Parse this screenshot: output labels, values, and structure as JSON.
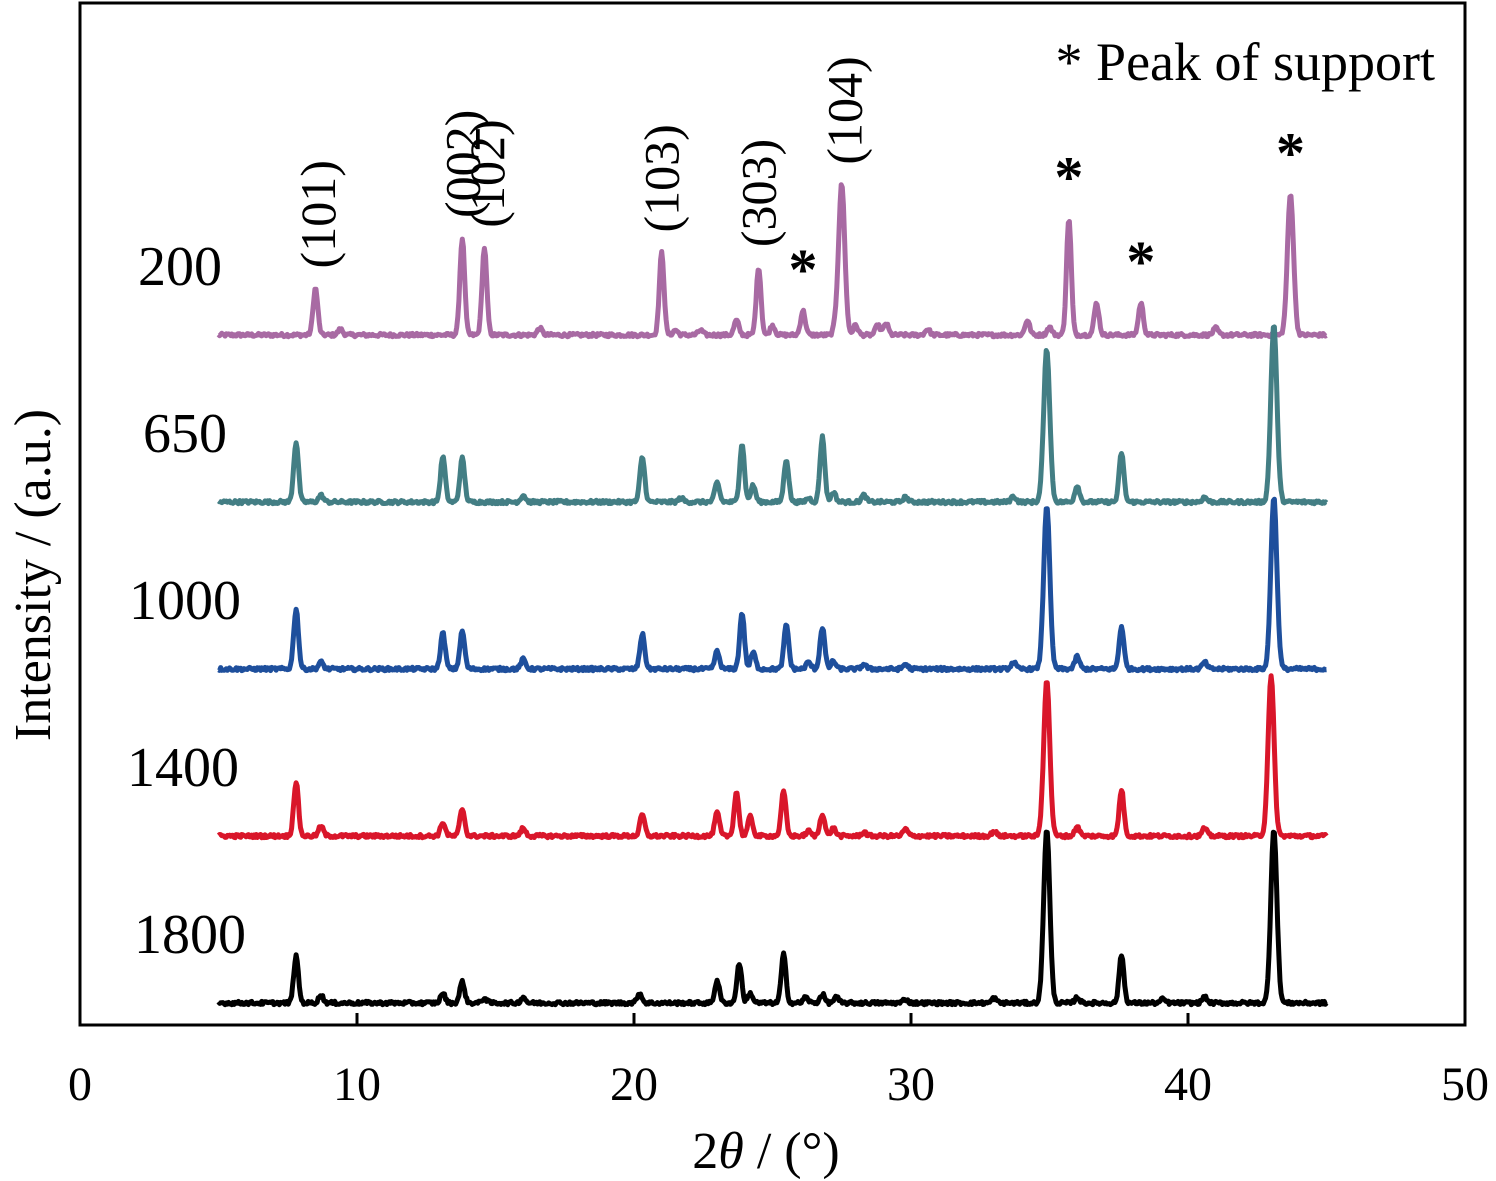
{
  "chart_data": {
    "type": "line",
    "xlabel_prefix": "2",
    "xlabel_symbol": "θ",
    "xlabel_suffix": " / (°)",
    "ylabel": "Intensity / (a.u.)",
    "xlim": [
      0,
      50
    ],
    "x_ticks": [
      0,
      10,
      20,
      30,
      40,
      50
    ],
    "y_ticks_shown": false,
    "grid": false,
    "legend": {
      "text": "* Peak of support",
      "placement": "top-right"
    },
    "x_range_data": [
      5,
      45
    ],
    "series": [
      {
        "name": "200",
        "color": "#a86aa3",
        "offset": 4,
        "peaks": [
          [
            8.5,
            0.48
          ],
          [
            9.4,
            0.06
          ],
          [
            13.8,
            1.0
          ],
          [
            14.6,
            0.9
          ],
          [
            16.6,
            0.07
          ],
          [
            21.0,
            0.85
          ],
          [
            21.5,
            0.05
          ],
          [
            22.4,
            0.05
          ],
          [
            23.7,
            0.15
          ],
          [
            24.5,
            0.7
          ],
          [
            25.0,
            0.1
          ],
          [
            26.1,
            0.25
          ],
          [
            27.3,
            0.1
          ],
          [
            27.5,
            1.55
          ],
          [
            28.0,
            0.1
          ],
          [
            28.8,
            0.1
          ],
          [
            29.1,
            0.12
          ],
          [
            30.6,
            0.06
          ],
          [
            34.2,
            0.15
          ],
          [
            35.0,
            0.08
          ],
          [
            35.7,
            1.2
          ],
          [
            36.7,
            0.33
          ],
          [
            38.3,
            0.33
          ],
          [
            41.0,
            0.07
          ],
          [
            43.7,
            1.45
          ]
        ]
      },
      {
        "name": "650",
        "color": "#437e84",
        "offset": 3,
        "peaks": [
          [
            7.8,
            0.62
          ],
          [
            8.7,
            0.07
          ],
          [
            13.1,
            0.47
          ],
          [
            13.8,
            0.45
          ],
          [
            16.0,
            0.07
          ],
          [
            20.3,
            0.46
          ],
          [
            21.7,
            0.04
          ],
          [
            23.0,
            0.2
          ],
          [
            23.9,
            0.6
          ],
          [
            24.3,
            0.17
          ],
          [
            25.5,
            0.44
          ],
          [
            26.3,
            0.04
          ],
          [
            26.8,
            0.67
          ],
          [
            27.2,
            0.1
          ],
          [
            28.3,
            0.07
          ],
          [
            29.8,
            0.05
          ],
          [
            33.7,
            0.06
          ],
          [
            34.9,
            1.58
          ],
          [
            36.0,
            0.17
          ],
          [
            37.6,
            0.51
          ],
          [
            40.6,
            0.05
          ],
          [
            43.1,
            1.83
          ]
        ]
      },
      {
        "name": "1000",
        "color": "#1e4f9c",
        "offset": 2,
        "peaks": [
          [
            7.8,
            0.62
          ],
          [
            8.7,
            0.07
          ],
          [
            13.1,
            0.37
          ],
          [
            13.8,
            0.39
          ],
          [
            16.0,
            0.1
          ],
          [
            20.3,
            0.36
          ],
          [
            23.0,
            0.18
          ],
          [
            23.9,
            0.58
          ],
          [
            24.3,
            0.17
          ],
          [
            25.5,
            0.46
          ],
          [
            26.3,
            0.07
          ],
          [
            26.8,
            0.43
          ],
          [
            27.2,
            0.08
          ],
          [
            28.3,
            0.05
          ],
          [
            29.8,
            0.05
          ],
          [
            33.7,
            0.07
          ],
          [
            34.9,
            1.69
          ],
          [
            36.0,
            0.13
          ],
          [
            37.6,
            0.44
          ],
          [
            40.6,
            0.07
          ],
          [
            43.1,
            1.77
          ]
        ]
      },
      {
        "name": "1400",
        "color": "#d9162a",
        "offset": 1,
        "peaks": [
          [
            7.8,
            0.56
          ],
          [
            8.7,
            0.1
          ],
          [
            13.1,
            0.14
          ],
          [
            13.8,
            0.28
          ],
          [
            16.0,
            0.08
          ],
          [
            20.3,
            0.22
          ],
          [
            23.0,
            0.24
          ],
          [
            23.7,
            0.45
          ],
          [
            24.2,
            0.2
          ],
          [
            25.4,
            0.46
          ],
          [
            26.3,
            0.05
          ],
          [
            26.8,
            0.23
          ],
          [
            27.2,
            0.08
          ],
          [
            28.3,
            0.04
          ],
          [
            29.8,
            0.07
          ],
          [
            33.0,
            0.05
          ],
          [
            34.9,
            1.61
          ],
          [
            36.0,
            0.1
          ],
          [
            37.6,
            0.48
          ],
          [
            40.6,
            0.08
          ],
          [
            43.0,
            1.64
          ]
        ]
      },
      {
        "name": "1800",
        "color": "#000000",
        "offset": 0,
        "peaks": [
          [
            7.8,
            0.48
          ],
          [
            8.7,
            0.08
          ],
          [
            13.1,
            0.1
          ],
          [
            13.8,
            0.22
          ],
          [
            14.6,
            0.05
          ],
          [
            16.0,
            0.06
          ],
          [
            20.2,
            0.1
          ],
          [
            23.0,
            0.23
          ],
          [
            23.8,
            0.41
          ],
          [
            24.2,
            0.1
          ],
          [
            25.4,
            0.5
          ],
          [
            26.2,
            0.06
          ],
          [
            26.8,
            0.09
          ],
          [
            27.3,
            0.06
          ],
          [
            29.8,
            0.04
          ],
          [
            33.0,
            0.05
          ],
          [
            34.9,
            1.8
          ],
          [
            36.0,
            0.06
          ],
          [
            37.6,
            0.5
          ],
          [
            39.1,
            0.04
          ],
          [
            40.6,
            0.06
          ],
          [
            43.1,
            1.8
          ]
        ]
      }
    ],
    "hkl_labels": [
      {
        "text": "(101)",
        "x": 8.6,
        "on": "200"
      },
      {
        "text": "(002)",
        "x": 13.8,
        "on": "200"
      },
      {
        "text": "(102)",
        "x": 14.7,
        "on": "200"
      },
      {
        "text": "(103)",
        "x": 21.0,
        "on": "200"
      },
      {
        "text": "(303)",
        "x": 24.5,
        "on": "200"
      },
      {
        "text": "(104)",
        "x": 27.6,
        "on": "200"
      }
    ],
    "support_marks": [
      {
        "text": "*",
        "x": 26.1
      },
      {
        "text": "*",
        "x": 35.7
      },
      {
        "text": "*",
        "x": 38.3
      },
      {
        "text": "*",
        "x": 43.7
      }
    ]
  }
}
